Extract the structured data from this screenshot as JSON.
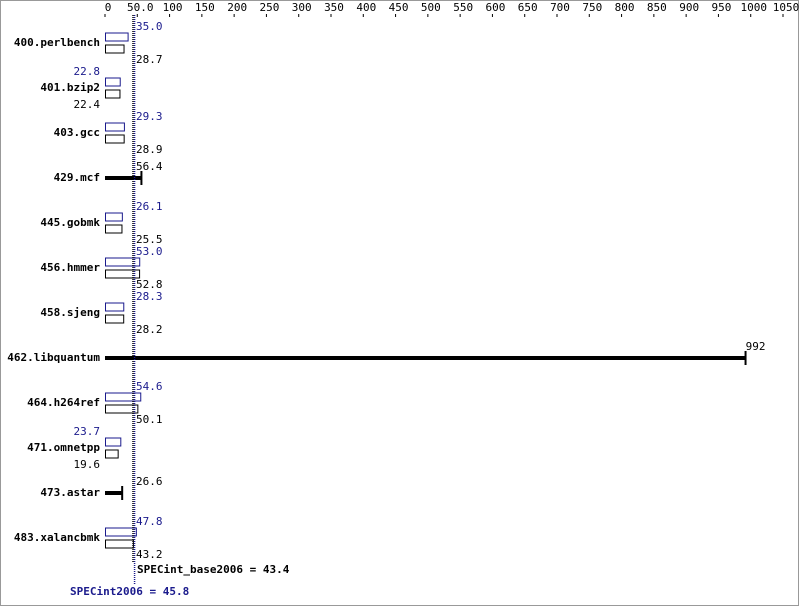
{
  "chart_data": {
    "type": "bar",
    "orientation": "horizontal",
    "categories": [
      "400.perlbench",
      "401.bzip2",
      "403.gcc",
      "429.mcf",
      "445.gobmk",
      "456.hmmer",
      "458.sjeng",
      "462.libquantum",
      "464.h264ref",
      "471.omnetpp",
      "473.astar",
      "483.xalancbmk"
    ],
    "series": [
      {
        "color": "#1a1a8c",
        "values": [
          35.0,
          22.8,
          29.3,
          null,
          26.1,
          53.0,
          28.3,
          null,
          54.6,
          23.7,
          null,
          47.8
        ],
        "value_labels": [
          "35.0",
          "22.8",
          "29.3",
          null,
          "26.1",
          "53.0",
          "28.3",
          null,
          "54.6",
          "23.7",
          null,
          "47.8"
        ]
      },
      {
        "color": "#000000",
        "values": [
          28.7,
          22.4,
          28.9,
          56.4,
          25.5,
          52.8,
          28.2,
          992,
          50.1,
          19.6,
          26.6,
          43.2
        ],
        "value_labels": [
          "28.7",
          "22.4",
          "28.9",
          "56.4",
          "25.5",
          "52.8",
          "28.2",
          "992",
          "50.1",
          "19.6",
          "26.6",
          "43.2"
        ]
      }
    ],
    "xlim": [
      0,
      1050
    ],
    "xticks": [
      0,
      {
        "value": 50,
        "label": "50.0"
      },
      100,
      150,
      200,
      250,
      300,
      350,
      400,
      450,
      500,
      550,
      600,
      650,
      700,
      750,
      800,
      850,
      900,
      950,
      1000,
      1050
    ],
    "reference_lines": [
      {
        "label": "SPECint_base2006 = 43.4",
        "value": 43.4,
        "color": "#000000"
      },
      {
        "label": "SPECint2006 = 45.8",
        "value": 45.8,
        "color": "#1a1a8c"
      }
    ]
  }
}
